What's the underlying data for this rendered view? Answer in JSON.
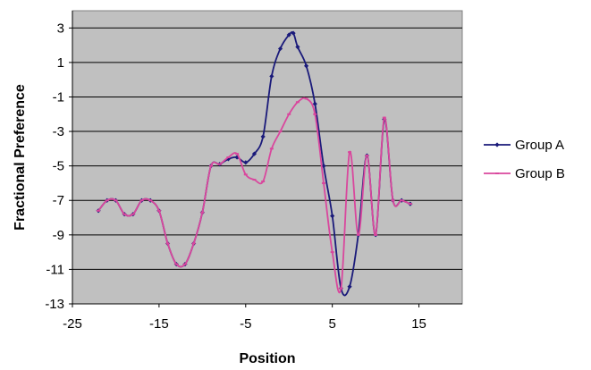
{
  "chart_data": {
    "type": "line",
    "title": "",
    "xlabel": "Position",
    "ylabel": "Fractional Preference",
    "xlim": [
      -25,
      20
    ],
    "ylim": [
      -13,
      4
    ],
    "x_ticks": [
      -25,
      -15,
      -5,
      5,
      15
    ],
    "y_ticks": [
      3,
      1,
      -1,
      -3,
      -5,
      -7,
      -9,
      -11,
      -13
    ],
    "x_tick_labels": [
      "-25",
      "-15",
      "-5",
      "5",
      "15"
    ],
    "y_tick_labels": [
      "3",
      "1",
      "-1",
      "-3",
      "-5",
      "-7",
      "-9",
      "-11",
      "-13"
    ],
    "grid": "horizontal",
    "plot_background": "#c0c0c0",
    "legend_position": "right",
    "series": [
      {
        "name": "Group A",
        "color": "#1a1a7a",
        "marker": "diamond",
        "points": [
          [
            -22,
            -7.6
          ],
          [
            -21,
            -7.0
          ],
          [
            -20,
            -7.0
          ],
          [
            -19,
            -7.8
          ],
          [
            -18,
            -7.8
          ],
          [
            -17,
            -7.0
          ],
          [
            -16,
            -7.0
          ],
          [
            -15,
            -7.6
          ],
          [
            -14,
            -9.5
          ],
          [
            -13,
            -10.7
          ],
          [
            -12,
            -10.7
          ],
          [
            -11,
            -9.5
          ],
          [
            -10,
            -7.7
          ],
          [
            -9,
            -5.0
          ],
          [
            -8,
            -4.9
          ],
          [
            -7,
            -4.6
          ],
          [
            -6,
            -4.5
          ],
          [
            -5,
            -4.8
          ],
          [
            -4,
            -4.3
          ],
          [
            -3,
            -3.3
          ],
          [
            -2,
            0.2
          ],
          [
            -1,
            1.8
          ],
          [
            0,
            2.6
          ],
          [
            0.5,
            2.7
          ],
          [
            1,
            1.9
          ],
          [
            2,
            0.8
          ],
          [
            3,
            -1.4
          ],
          [
            4,
            -5.0
          ],
          [
            5,
            -7.9
          ],
          [
            6,
            -12.1
          ],
          [
            7,
            -12.0
          ],
          [
            8,
            -9.0
          ],
          [
            9,
            -4.4
          ],
          [
            10,
            -9.0
          ],
          [
            11,
            -2.3
          ],
          [
            12,
            -7.0
          ],
          [
            13,
            -7.0
          ],
          [
            14,
            -7.2
          ]
        ]
      },
      {
        "name": "Group B",
        "color": "#d9479d",
        "marker": "dash",
        "points": [
          [
            -22,
            -7.6
          ],
          [
            -21,
            -7.0
          ],
          [
            -20,
            -7.0
          ],
          [
            -19,
            -7.8
          ],
          [
            -18,
            -7.8
          ],
          [
            -17,
            -7.0
          ],
          [
            -16,
            -7.0
          ],
          [
            -15,
            -7.6
          ],
          [
            -14,
            -9.5
          ],
          [
            -13,
            -10.7
          ],
          [
            -12,
            -10.7
          ],
          [
            -11,
            -9.5
          ],
          [
            -10,
            -7.7
          ],
          [
            -9,
            -5.0
          ],
          [
            -8,
            -4.9
          ],
          [
            -7,
            -4.5
          ],
          [
            -6,
            -4.3
          ],
          [
            -5,
            -5.5
          ],
          [
            -4,
            -5.8
          ],
          [
            -3,
            -5.9
          ],
          [
            -2,
            -4.0
          ],
          [
            -1,
            -3.0
          ],
          [
            0,
            -2.0
          ],
          [
            1,
            -1.3
          ],
          [
            2,
            -1.1
          ],
          [
            3,
            -2.0
          ],
          [
            4,
            -6.0
          ],
          [
            5,
            -10.0
          ],
          [
            6,
            -12.1
          ],
          [
            7,
            -4.2
          ],
          [
            8,
            -9.0
          ],
          [
            9,
            -4.4
          ],
          [
            10,
            -9.0
          ],
          [
            11,
            -2.2
          ],
          [
            12,
            -7.0
          ],
          [
            13,
            -7.0
          ],
          [
            14,
            -7.2
          ]
        ]
      }
    ]
  }
}
